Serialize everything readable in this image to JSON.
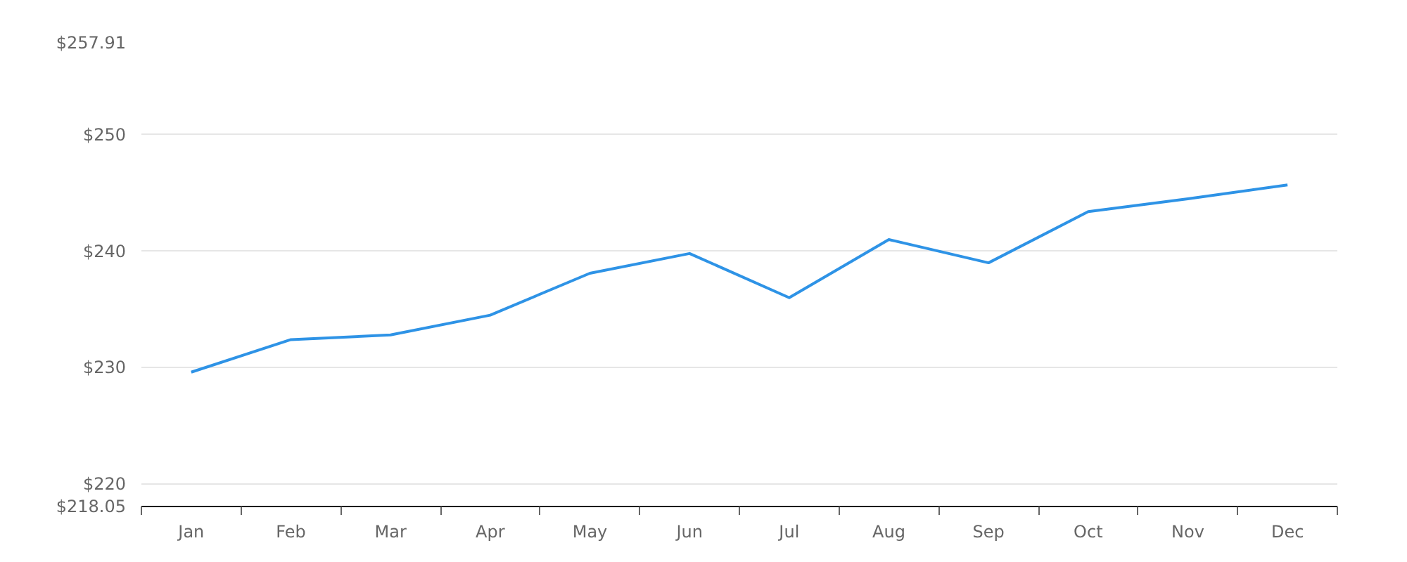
{
  "chart_data": {
    "type": "line",
    "categories": [
      "Jan",
      "Feb",
      "Mar",
      "Apr",
      "May",
      "Jun",
      "Jul",
      "Aug",
      "Sep",
      "Oct",
      "Nov",
      "Dec"
    ],
    "series": [
      {
        "color": "#2e93e6",
        "values": [
          229.6,
          232.4,
          232.8,
          234.5,
          238.1,
          239.8,
          236.0,
          241.0,
          239.0,
          243.4,
          244.5,
          245.7
        ]
      }
    ],
    "ylim": [
      218.05,
      257.91
    ],
    "yticks": [
      {
        "value": 218.05,
        "label": "$218.05"
      },
      {
        "value": 220,
        "label": "$220"
      },
      {
        "value": 230,
        "label": "$230"
      },
      {
        "value": 240,
        "label": "$240"
      },
      {
        "value": 250,
        "label": "$250"
      },
      {
        "value": 257.91,
        "label": "$257.91"
      }
    ],
    "grid": "y",
    "marker": "none",
    "line_style": "solid"
  }
}
